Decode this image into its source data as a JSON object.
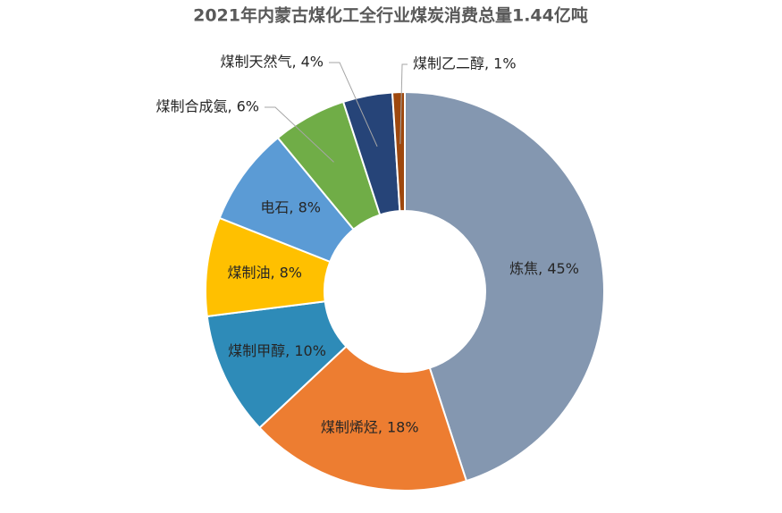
{
  "chart_data": {
    "type": "donut",
    "title": "2021年内蒙古煤化工全行业煤炭消费总量1.44亿吨",
    "values": [
      45,
      18,
      10,
      8,
      8,
      6,
      4,
      1
    ],
    "value_labels": [
      "炼焦, 45%",
      "煤制烯烃, 18%",
      "煤制甲醇, 10%",
      "煤制油, 8%",
      "电石, 8%",
      "煤制合成氨, 6%",
      "煤制天然气, 4%",
      "煤制乙二醇, 1%"
    ],
    "colors": [
      "#8497b0",
      "#ed7d31",
      "#2e8bb8",
      "#ffc000",
      "#5b9bd5",
      "#70ad47",
      "#264478",
      "#9e480e"
    ]
  }
}
